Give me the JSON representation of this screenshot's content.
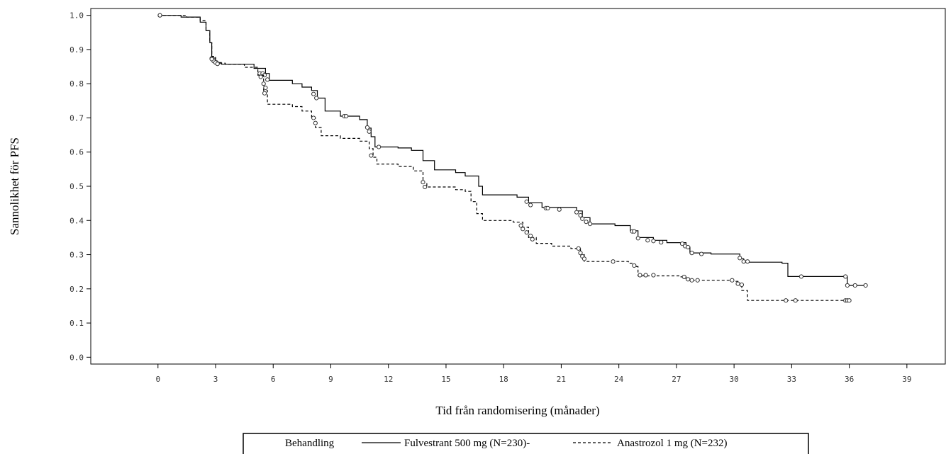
{
  "chart_data": {
    "type": "line",
    "step": true,
    "xlabel": "Tid från randomisering (månader)",
    "ylabel": "Sannolikhet för PFS",
    "xlim": [
      -3.5,
      41
    ],
    "ylim": [
      -0.02,
      1.02
    ],
    "x_ticks": [
      0,
      3,
      6,
      9,
      12,
      15,
      18,
      21,
      24,
      27,
      30,
      33,
      36,
      39
    ],
    "x_tick_labels": [
      "0",
      "3",
      "6",
      "9",
      "12",
      "15",
      "18",
      "21",
      "24",
      "27",
      "30",
      "33",
      "36",
      "39"
    ],
    "y_ticks": [
      0.0,
      0.1,
      0.2,
      0.3,
      0.4,
      0.5,
      0.6,
      0.7,
      0.8,
      0.9,
      1.0
    ],
    "y_tick_labels": [
      "0.0",
      "0.1",
      "0.2",
      "0.3",
      "0.4",
      "0.5",
      "0.6",
      "0.7",
      "0.8",
      "0.9",
      "1.0"
    ],
    "grid": false,
    "legend": {
      "position": "bottom-center",
      "title": "Behandling",
      "entries": [
        "Fulvestrant 500 mg (N=230)-",
        "Anastrozol 1 mg (N=232)"
      ]
    },
    "series": [
      {
        "name": "Fulvestrant 500 mg (N=230)",
        "style": "solid",
        "color": "#000000",
        "points": [
          [
            0,
            1.0
          ],
          [
            1.2,
            0.995
          ],
          [
            2.2,
            0.98
          ],
          [
            2.5,
            0.955
          ],
          [
            2.7,
            0.92
          ],
          [
            2.8,
            0.875
          ],
          [
            3.0,
            0.862
          ],
          [
            3.3,
            0.857
          ],
          [
            5.0,
            0.845
          ],
          [
            5.6,
            0.83
          ],
          [
            5.8,
            0.81
          ],
          [
            7.0,
            0.8
          ],
          [
            7.5,
            0.79
          ],
          [
            8.0,
            0.78
          ],
          [
            8.3,
            0.758
          ],
          [
            8.7,
            0.72
          ],
          [
            9.5,
            0.705
          ],
          [
            10.5,
            0.695
          ],
          [
            10.9,
            0.67
          ],
          [
            11.1,
            0.645
          ],
          [
            11.3,
            0.615
          ],
          [
            12.5,
            0.612
          ],
          [
            13.2,
            0.605
          ],
          [
            13.8,
            0.575
          ],
          [
            14.4,
            0.548
          ],
          [
            15.5,
            0.54
          ],
          [
            16.0,
            0.53
          ],
          [
            16.7,
            0.5
          ],
          [
            16.9,
            0.475
          ],
          [
            18.7,
            0.468
          ],
          [
            19.3,
            0.452
          ],
          [
            20.0,
            0.438
          ],
          [
            21.8,
            0.428
          ],
          [
            22.1,
            0.408
          ],
          [
            22.5,
            0.39
          ],
          [
            23.8,
            0.385
          ],
          [
            24.6,
            0.37
          ],
          [
            25.0,
            0.35
          ],
          [
            25.8,
            0.342
          ],
          [
            26.5,
            0.335
          ],
          [
            27.5,
            0.322
          ],
          [
            27.7,
            0.305
          ],
          [
            28.8,
            0.302
          ],
          [
            30.3,
            0.288
          ],
          [
            30.5,
            0.278
          ],
          [
            32.5,
            0.275
          ],
          [
            32.8,
            0.236
          ],
          [
            35.9,
            0.21
          ],
          [
            36.9,
            0.21
          ]
        ],
        "censored": [
          [
            0.1,
            1.0
          ],
          [
            2.8,
            0.874
          ],
          [
            2.9,
            0.866
          ],
          [
            3.05,
            0.862
          ],
          [
            5.3,
            0.83
          ],
          [
            5.45,
            0.83
          ],
          [
            5.55,
            0.825
          ],
          [
            5.7,
            0.812
          ],
          [
            8.1,
            0.77
          ],
          [
            8.25,
            0.758
          ],
          [
            9.7,
            0.705
          ],
          [
            9.8,
            0.705
          ],
          [
            10.9,
            0.672
          ],
          [
            11.0,
            0.66
          ],
          [
            11.5,
            0.615
          ],
          [
            19.2,
            0.455
          ],
          [
            19.4,
            0.445
          ],
          [
            20.2,
            0.436
          ],
          [
            20.3,
            0.436
          ],
          [
            20.9,
            0.432
          ],
          [
            21.8,
            0.424
          ],
          [
            22.0,
            0.415
          ],
          [
            22.1,
            0.405
          ],
          [
            22.3,
            0.396
          ],
          [
            22.5,
            0.39
          ],
          [
            24.7,
            0.368
          ],
          [
            24.8,
            0.368
          ],
          [
            25.0,
            0.348
          ],
          [
            25.5,
            0.342
          ],
          [
            25.8,
            0.34
          ],
          [
            26.2,
            0.336
          ],
          [
            27.3,
            0.332
          ],
          [
            27.45,
            0.325
          ],
          [
            27.6,
            0.322
          ],
          [
            27.8,
            0.305
          ],
          [
            28.3,
            0.302
          ],
          [
            30.3,
            0.29
          ],
          [
            30.5,
            0.28
          ],
          [
            30.7,
            0.28
          ],
          [
            33.5,
            0.236
          ],
          [
            35.8,
            0.236
          ],
          [
            35.9,
            0.21
          ],
          [
            36.3,
            0.21
          ],
          [
            36.85,
            0.21
          ]
        ]
      },
      {
        "name": "Anastrozol 1 mg (N=232)",
        "style": "dashed",
        "color": "#000000",
        "points": [
          [
            0,
            1.0
          ],
          [
            1.5,
            0.995
          ],
          [
            2.2,
            0.985
          ],
          [
            2.5,
            0.955
          ],
          [
            2.7,
            0.92
          ],
          [
            2.8,
            0.88
          ],
          [
            3.0,
            0.86
          ],
          [
            3.5,
            0.857
          ],
          [
            4.5,
            0.848
          ],
          [
            5.2,
            0.825
          ],
          [
            5.5,
            0.78
          ],
          [
            5.7,
            0.74
          ],
          [
            7.0,
            0.733
          ],
          [
            7.5,
            0.72
          ],
          [
            8.0,
            0.7
          ],
          [
            8.2,
            0.672
          ],
          [
            8.5,
            0.648
          ],
          [
            9.5,
            0.64
          ],
          [
            10.5,
            0.632
          ],
          [
            11.0,
            0.61
          ],
          [
            11.2,
            0.585
          ],
          [
            11.4,
            0.565
          ],
          [
            12.5,
            0.558
          ],
          [
            13.3,
            0.545
          ],
          [
            13.8,
            0.51
          ],
          [
            14.0,
            0.498
          ],
          [
            15.5,
            0.49
          ],
          [
            16.0,
            0.485
          ],
          [
            16.3,
            0.455
          ],
          [
            16.6,
            0.42
          ],
          [
            16.9,
            0.4
          ],
          [
            18.5,
            0.395
          ],
          [
            19.0,
            0.38
          ],
          [
            19.3,
            0.35
          ],
          [
            19.7,
            0.333
          ],
          [
            20.5,
            0.325
          ],
          [
            21.5,
            0.318
          ],
          [
            22.0,
            0.3
          ],
          [
            22.2,
            0.28
          ],
          [
            24.5,
            0.275
          ],
          [
            24.8,
            0.265
          ],
          [
            25.0,
            0.238
          ],
          [
            27.2,
            0.235
          ],
          [
            27.5,
            0.225
          ],
          [
            29.8,
            0.222
          ],
          [
            30.2,
            0.213
          ],
          [
            30.4,
            0.195
          ],
          [
            30.7,
            0.166
          ],
          [
            36.0,
            0.166
          ]
        ],
        "censored": [
          [
            0.1,
            1.0
          ],
          [
            2.8,
            0.872
          ],
          [
            3.0,
            0.862
          ],
          [
            3.1,
            0.858
          ],
          [
            5.35,
            0.82
          ],
          [
            5.5,
            0.8
          ],
          [
            5.6,
            0.788
          ],
          [
            5.55,
            0.772
          ],
          [
            8.1,
            0.7
          ],
          [
            8.2,
            0.685
          ],
          [
            11.1,
            0.59
          ],
          [
            13.8,
            0.512
          ],
          [
            13.9,
            0.498
          ],
          [
            18.9,
            0.385
          ],
          [
            19.0,
            0.375
          ],
          [
            19.2,
            0.365
          ],
          [
            19.4,
            0.355
          ],
          [
            19.5,
            0.345
          ],
          [
            21.9,
            0.318
          ],
          [
            22.0,
            0.305
          ],
          [
            22.1,
            0.295
          ],
          [
            22.2,
            0.288
          ],
          [
            23.7,
            0.28
          ],
          [
            24.8,
            0.268
          ],
          [
            25.1,
            0.24
          ],
          [
            25.4,
            0.24
          ],
          [
            25.8,
            0.24
          ],
          [
            27.4,
            0.235
          ],
          [
            27.6,
            0.228
          ],
          [
            27.8,
            0.225
          ],
          [
            28.1,
            0.225
          ],
          [
            29.9,
            0.225
          ],
          [
            30.2,
            0.215
          ],
          [
            30.4,
            0.212
          ],
          [
            32.7,
            0.166
          ],
          [
            33.2,
            0.166
          ],
          [
            35.8,
            0.166
          ],
          [
            35.9,
            0.166
          ],
          [
            36.0,
            0.166
          ]
        ]
      }
    ]
  }
}
